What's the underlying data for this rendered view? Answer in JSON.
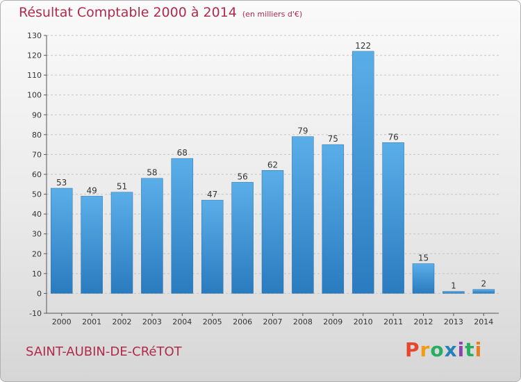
{
  "chart_data": {
    "type": "bar",
    "title": "Résultat Comptable 2000 à 2014",
    "subtitle": "(en milliers d'€)",
    "categories": [
      "2000",
      "2001",
      "2002",
      "2003",
      "2004",
      "2005",
      "2006",
      "2007",
      "2008",
      "2009",
      "2010",
      "2011",
      "2012",
      "2013",
      "2014"
    ],
    "values": [
      53,
      49,
      51,
      58,
      68,
      47,
      56,
      62,
      79,
      75,
      122,
      76,
      15,
      1,
      2
    ],
    "ylim": [
      -10,
      130
    ],
    "yticks": [
      -10,
      0,
      10,
      20,
      30,
      40,
      50,
      60,
      70,
      80,
      90,
      100,
      110,
      120,
      130
    ],
    "xlabel": "",
    "ylabel": "",
    "grid": true,
    "bar_color": "#3d93d6"
  },
  "place_name": "SAINT-AUBIN-DE-CRéTOT",
  "logo": {
    "letters": [
      "P",
      "r",
      "o",
      "x",
      "i",
      "t",
      "i"
    ],
    "colors": [
      "#e8452c",
      "#f39c12",
      "#27ae60",
      "#2980b9",
      "#8e44ad",
      "#27ae60",
      "#e67e22"
    ]
  }
}
